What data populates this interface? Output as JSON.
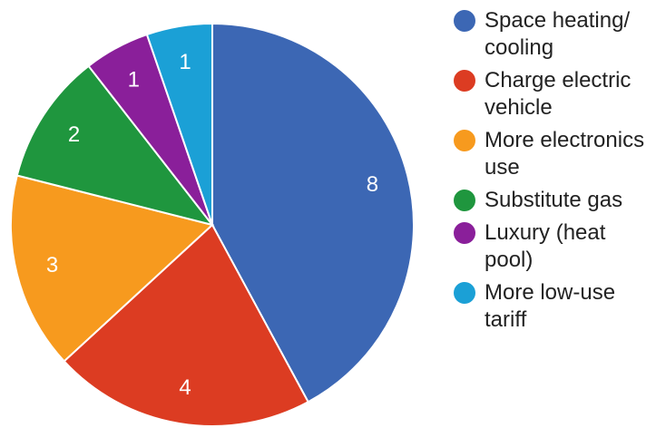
{
  "chart_data": {
    "type": "pie",
    "slices": [
      {
        "label": "Space heating/\ncooling",
        "value": 8,
        "color": "#3c67b4"
      },
      {
        "label": "Charge electric\nvehicle",
        "value": 4,
        "color": "#dc3c22"
      },
      {
        "label": "More electronics\nuse",
        "value": 3,
        "color": "#f79a1e"
      },
      {
        "label": "Substitute gas",
        "value": 2,
        "color": "#1f963e"
      },
      {
        "label": "Luxury (heat\npool)",
        "value": 1,
        "color": "#8a1f9a"
      },
      {
        "label": "More low-use\ntariff",
        "value": 1,
        "color": "#1ba0d6"
      }
    ],
    "legend_position": "right"
  }
}
